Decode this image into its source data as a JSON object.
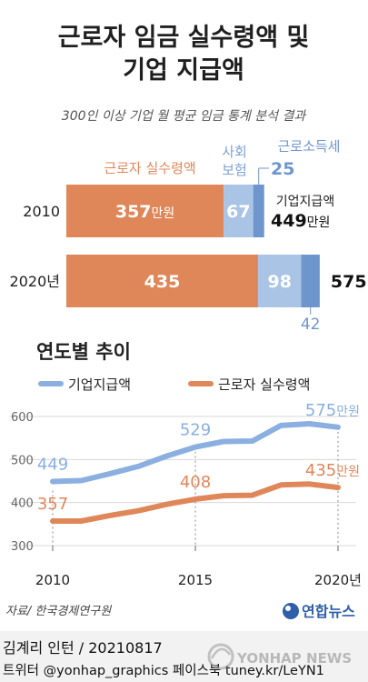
{
  "header": {
    "title_line1": "근로자 임금 실수령액 및",
    "title_line2": "기업 지급액",
    "subtitle": "300인 이상 기업 월 평균 임금 통계 분석 결과"
  },
  "labels": {
    "net_pay": "근로자 실수령액",
    "social_insurance": "사회\n보험",
    "income_tax": "근로소득세",
    "company_total": "기업지급액",
    "unit": "만원"
  },
  "colors": {
    "net_pay": "#e0875a",
    "social_insurance": "#a9c4e4",
    "income_tax": "#6f96cc",
    "company_line": "#8aafe0",
    "net_line": "#e0875a"
  },
  "chart_data": [
    {
      "type": "bar",
      "stacked": true,
      "orientation": "horizontal",
      "categories": [
        "2010",
        "2020년"
      ],
      "series": [
        {
          "name": "근로자 실수령액",
          "values": [
            357,
            435
          ]
        },
        {
          "name": "사회보험",
          "values": [
            67,
            98
          ]
        },
        {
          "name": "근로소득세",
          "values": [
            25,
            42
          ]
        }
      ],
      "totals": [
        449,
        575
      ],
      "total_label": "기업지급액"
    },
    {
      "type": "line",
      "title": "연도별 추이",
      "x": [
        2010,
        2011,
        2012,
        2013,
        2014,
        2015,
        2016,
        2017,
        2018,
        2019,
        2020
      ],
      "x_ticks": [
        "2010",
        "2015",
        "2020년"
      ],
      "ylim": [
        300,
        600
      ],
      "y_ticks": [
        300,
        400,
        500,
        600
      ],
      "legend": "top-left",
      "series": [
        {
          "name": "기업지급액",
          "values": [
            449,
            451,
            467,
            484,
            508,
            529,
            542,
            543,
            579,
            583,
            575
          ]
        },
        {
          "name": "근로자 실수령액",
          "values": [
            357,
            357,
            370,
            381,
            396,
            408,
            416,
            417,
            441,
            443,
            435
          ]
        }
      ],
      "annotations": [
        {
          "series": 0,
          "index": 0,
          "text": "449"
        },
        {
          "series": 0,
          "index": 5,
          "text": "529"
        },
        {
          "series": 0,
          "index": 10,
          "text": "575"
        },
        {
          "series": 1,
          "index": 0,
          "text": "357"
        },
        {
          "series": 1,
          "index": 5,
          "text": "408"
        },
        {
          "series": 1,
          "index": 10,
          "text": "435"
        }
      ]
    }
  ],
  "footer": {
    "source": "자료/ 한국경제연구원",
    "logo_text": "연합뉴스",
    "credit": "김계리 인턴 / 20210817",
    "social": "트위터 @yonhap_graphics  페이스북 tuney.kr/LeYN1",
    "watermark": "YONHAP NEWS"
  }
}
